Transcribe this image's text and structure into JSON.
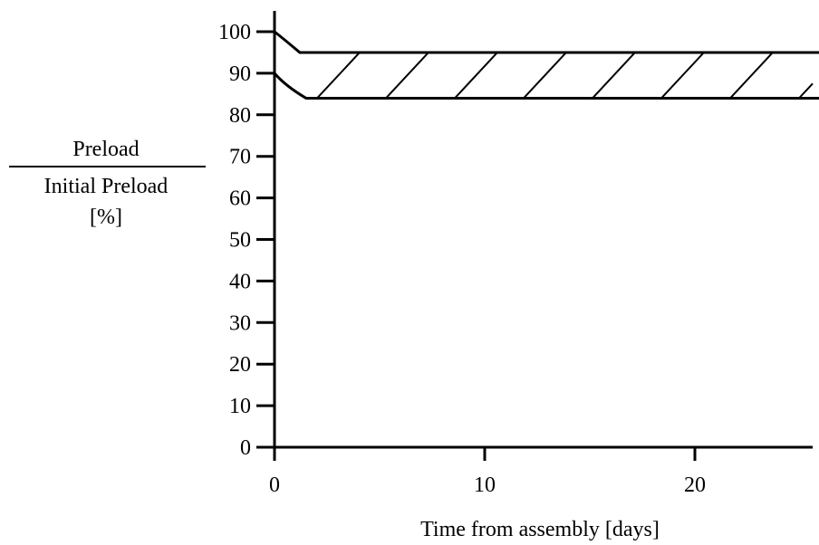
{
  "chart_data": {
    "type": "area",
    "title": "",
    "xlabel": "Time from assembly [days]",
    "ylabel_top": "Preload",
    "ylabel_bottom": "Initial Preload",
    "ylabel_unit": "[%]",
    "xlim": [
      0,
      26
    ],
    "ylim": [
      0,
      100
    ],
    "x_ticks": [
      0,
      10,
      20
    ],
    "x_tick_labels": [
      "0",
      "10",
      "20"
    ],
    "y_ticks": [
      0,
      10,
      20,
      30,
      40,
      50,
      60,
      70,
      80,
      90,
      100
    ],
    "y_tick_labels": [
      "0",
      "10",
      "20",
      "30",
      "40",
      "50",
      "60",
      "70",
      "80",
      "90",
      "100"
    ],
    "grid": false,
    "band": {
      "fill": "hatched",
      "upper": {
        "x": [
          0,
          0.5,
          1.2,
          26
        ],
        "y": [
          100,
          98,
          95,
          95
        ]
      },
      "lower": {
        "x": [
          0,
          0.5,
          1.5,
          26
        ],
        "y": [
          90,
          87,
          84,
          84
        ]
      },
      "start_point": {
        "x": 0,
        "y": 90
      }
    },
    "colors": {
      "line": "#000000",
      "background": "#ffffff"
    }
  }
}
